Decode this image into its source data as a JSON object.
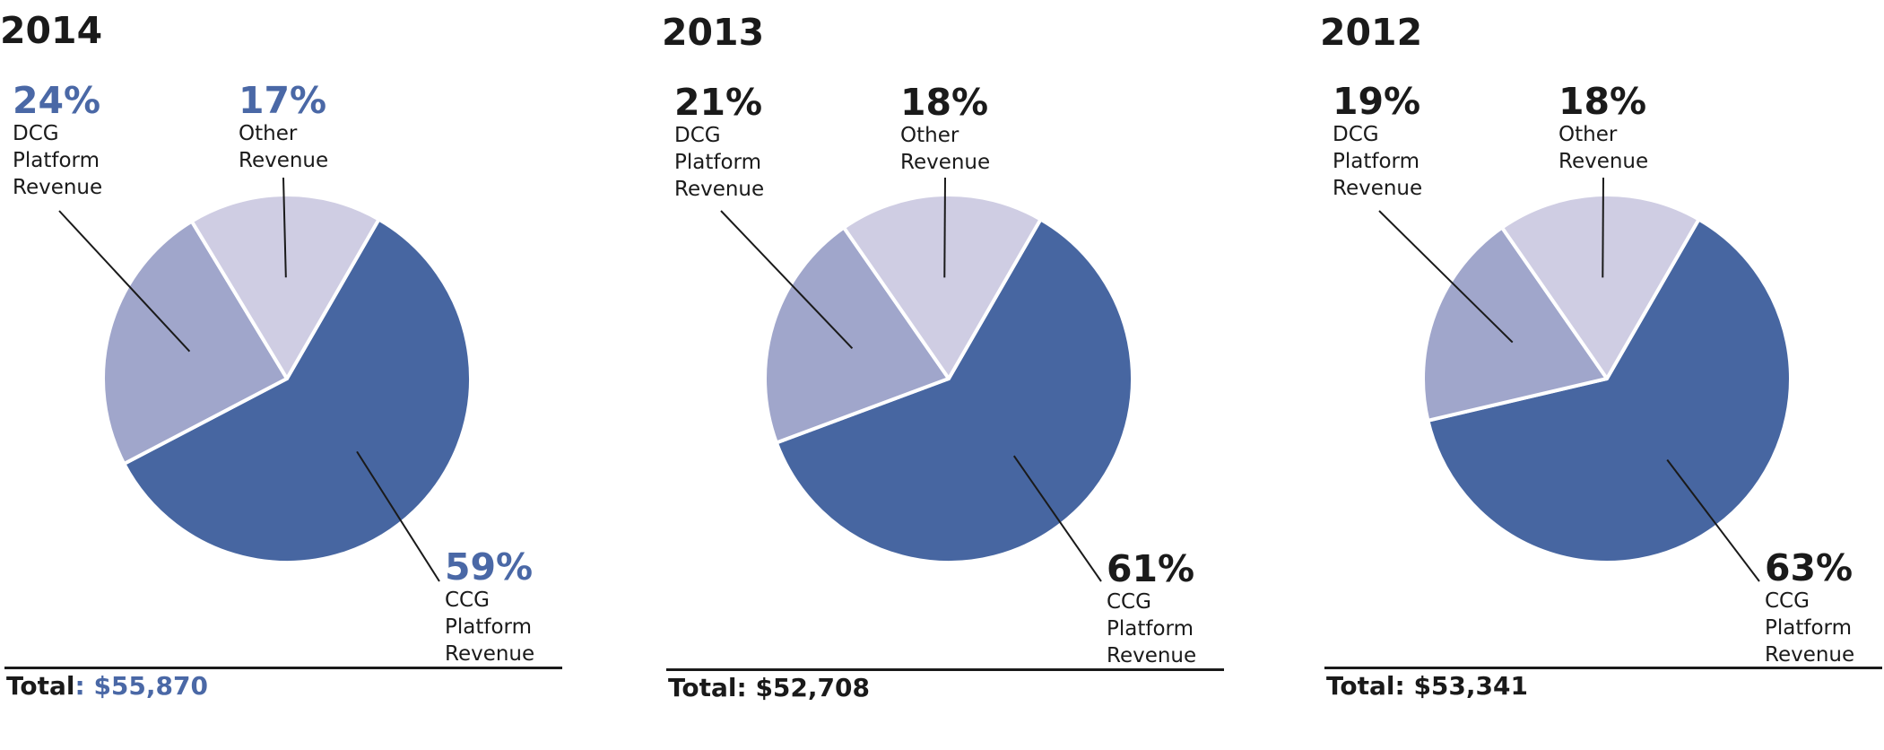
{
  "colors": {
    "ccg": "#4766a1",
    "dcg": "#a0a6cb",
    "other": "#cfcde3",
    "accent_blue": "#4a68a6",
    "dark": "#1a1a1a"
  },
  "chart_data": [
    {
      "type": "pie",
      "title": "2014",
      "slices": [
        {
          "label": "CCG Platform Revenue",
          "value": 59,
          "pct_label": "59%"
        },
        {
          "label": "DCG Platform Revenue",
          "value": 24,
          "pct_label": "24%"
        },
        {
          "label": "Other Revenue",
          "value": 17,
          "pct_label": "17%"
        }
      ],
      "total_prefix": "Total",
      "total_value": ": $55,870",
      "highlight": true
    },
    {
      "type": "pie",
      "title": "2013",
      "slices": [
        {
          "label": "CCG Platform Revenue",
          "value": 61,
          "pct_label": "61%"
        },
        {
          "label": "DCG Platform Revenue",
          "value": 21,
          "pct_label": "21%"
        },
        {
          "label": "Other Revenue",
          "value": 18,
          "pct_label": "18%"
        }
      ],
      "total_prefix": "Total",
      "total_value": ": $52,708",
      "highlight": false
    },
    {
      "type": "pie",
      "title": "2012",
      "slices": [
        {
          "label": "CCG Platform Revenue",
          "value": 63,
          "pct_label": "63%"
        },
        {
          "label": "DCG Platform Revenue",
          "value": 19,
          "pct_label": "19%"
        },
        {
          "label": "Other Revenue",
          "value": 18,
          "pct_label": "18%"
        }
      ],
      "total_prefix": "Total",
      "total_value": ": $53,341",
      "highlight": false
    }
  ],
  "labels": {
    "ccg": "CCG\nPlatform\nRevenue",
    "dcg": "DCG\nPlatform\nRevenue",
    "other": "Other\nRevenue"
  }
}
